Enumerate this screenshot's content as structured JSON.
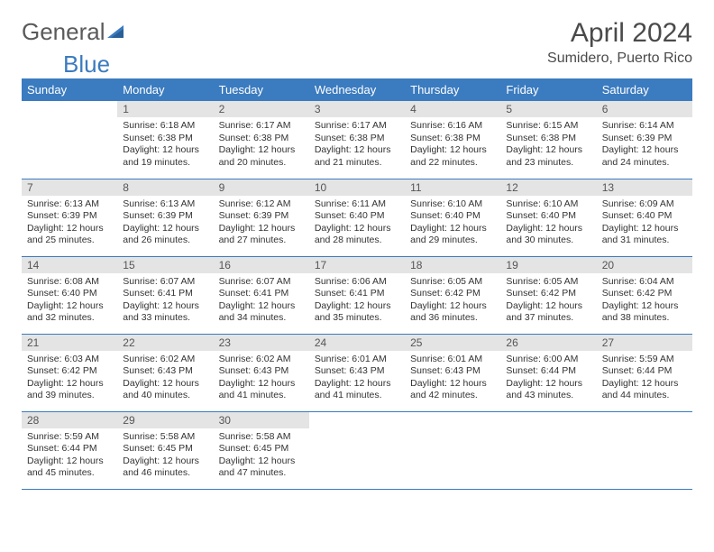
{
  "logo": {
    "text1": "General",
    "text2": "Blue"
  },
  "title": "April 2024",
  "location": "Sumidero, Puerto Rico",
  "weekdays": [
    "Sunday",
    "Monday",
    "Tuesday",
    "Wednesday",
    "Thursday",
    "Friday",
    "Saturday"
  ],
  "colors": {
    "header_bg": "#3b7bbf",
    "header_text": "#ffffff",
    "daynum_bg": "#e4e4e4",
    "border": "#3b7bbf",
    "text": "#333333"
  },
  "grid_start_offset": 1,
  "days": [
    {
      "n": 1,
      "sr": "6:18 AM",
      "ss": "6:38 PM",
      "dh": 12,
      "dm": 19
    },
    {
      "n": 2,
      "sr": "6:17 AM",
      "ss": "6:38 PM",
      "dh": 12,
      "dm": 20
    },
    {
      "n": 3,
      "sr": "6:17 AM",
      "ss": "6:38 PM",
      "dh": 12,
      "dm": 21
    },
    {
      "n": 4,
      "sr": "6:16 AM",
      "ss": "6:38 PM",
      "dh": 12,
      "dm": 22
    },
    {
      "n": 5,
      "sr": "6:15 AM",
      "ss": "6:38 PM",
      "dh": 12,
      "dm": 23
    },
    {
      "n": 6,
      "sr": "6:14 AM",
      "ss": "6:39 PM",
      "dh": 12,
      "dm": 24
    },
    {
      "n": 7,
      "sr": "6:13 AM",
      "ss": "6:39 PM",
      "dh": 12,
      "dm": 25
    },
    {
      "n": 8,
      "sr": "6:13 AM",
      "ss": "6:39 PM",
      "dh": 12,
      "dm": 26
    },
    {
      "n": 9,
      "sr": "6:12 AM",
      "ss": "6:39 PM",
      "dh": 12,
      "dm": 27
    },
    {
      "n": 10,
      "sr": "6:11 AM",
      "ss": "6:40 PM",
      "dh": 12,
      "dm": 28
    },
    {
      "n": 11,
      "sr": "6:10 AM",
      "ss": "6:40 PM",
      "dh": 12,
      "dm": 29
    },
    {
      "n": 12,
      "sr": "6:10 AM",
      "ss": "6:40 PM",
      "dh": 12,
      "dm": 30
    },
    {
      "n": 13,
      "sr": "6:09 AM",
      "ss": "6:40 PM",
      "dh": 12,
      "dm": 31
    },
    {
      "n": 14,
      "sr": "6:08 AM",
      "ss": "6:40 PM",
      "dh": 12,
      "dm": 32
    },
    {
      "n": 15,
      "sr": "6:07 AM",
      "ss": "6:41 PM",
      "dh": 12,
      "dm": 33
    },
    {
      "n": 16,
      "sr": "6:07 AM",
      "ss": "6:41 PM",
      "dh": 12,
      "dm": 34
    },
    {
      "n": 17,
      "sr": "6:06 AM",
      "ss": "6:41 PM",
      "dh": 12,
      "dm": 35
    },
    {
      "n": 18,
      "sr": "6:05 AM",
      "ss": "6:42 PM",
      "dh": 12,
      "dm": 36
    },
    {
      "n": 19,
      "sr": "6:05 AM",
      "ss": "6:42 PM",
      "dh": 12,
      "dm": 37
    },
    {
      "n": 20,
      "sr": "6:04 AM",
      "ss": "6:42 PM",
      "dh": 12,
      "dm": 38
    },
    {
      "n": 21,
      "sr": "6:03 AM",
      "ss": "6:42 PM",
      "dh": 12,
      "dm": 39
    },
    {
      "n": 22,
      "sr": "6:02 AM",
      "ss": "6:43 PM",
      "dh": 12,
      "dm": 40
    },
    {
      "n": 23,
      "sr": "6:02 AM",
      "ss": "6:43 PM",
      "dh": 12,
      "dm": 41
    },
    {
      "n": 24,
      "sr": "6:01 AM",
      "ss": "6:43 PM",
      "dh": 12,
      "dm": 41
    },
    {
      "n": 25,
      "sr": "6:01 AM",
      "ss": "6:43 PM",
      "dh": 12,
      "dm": 42
    },
    {
      "n": 26,
      "sr": "6:00 AM",
      "ss": "6:44 PM",
      "dh": 12,
      "dm": 43
    },
    {
      "n": 27,
      "sr": "5:59 AM",
      "ss": "6:44 PM",
      "dh": 12,
      "dm": 44
    },
    {
      "n": 28,
      "sr": "5:59 AM",
      "ss": "6:44 PM",
      "dh": 12,
      "dm": 45
    },
    {
      "n": 29,
      "sr": "5:58 AM",
      "ss": "6:45 PM",
      "dh": 12,
      "dm": 46
    },
    {
      "n": 30,
      "sr": "5:58 AM",
      "ss": "6:45 PM",
      "dh": 12,
      "dm": 47
    }
  ]
}
